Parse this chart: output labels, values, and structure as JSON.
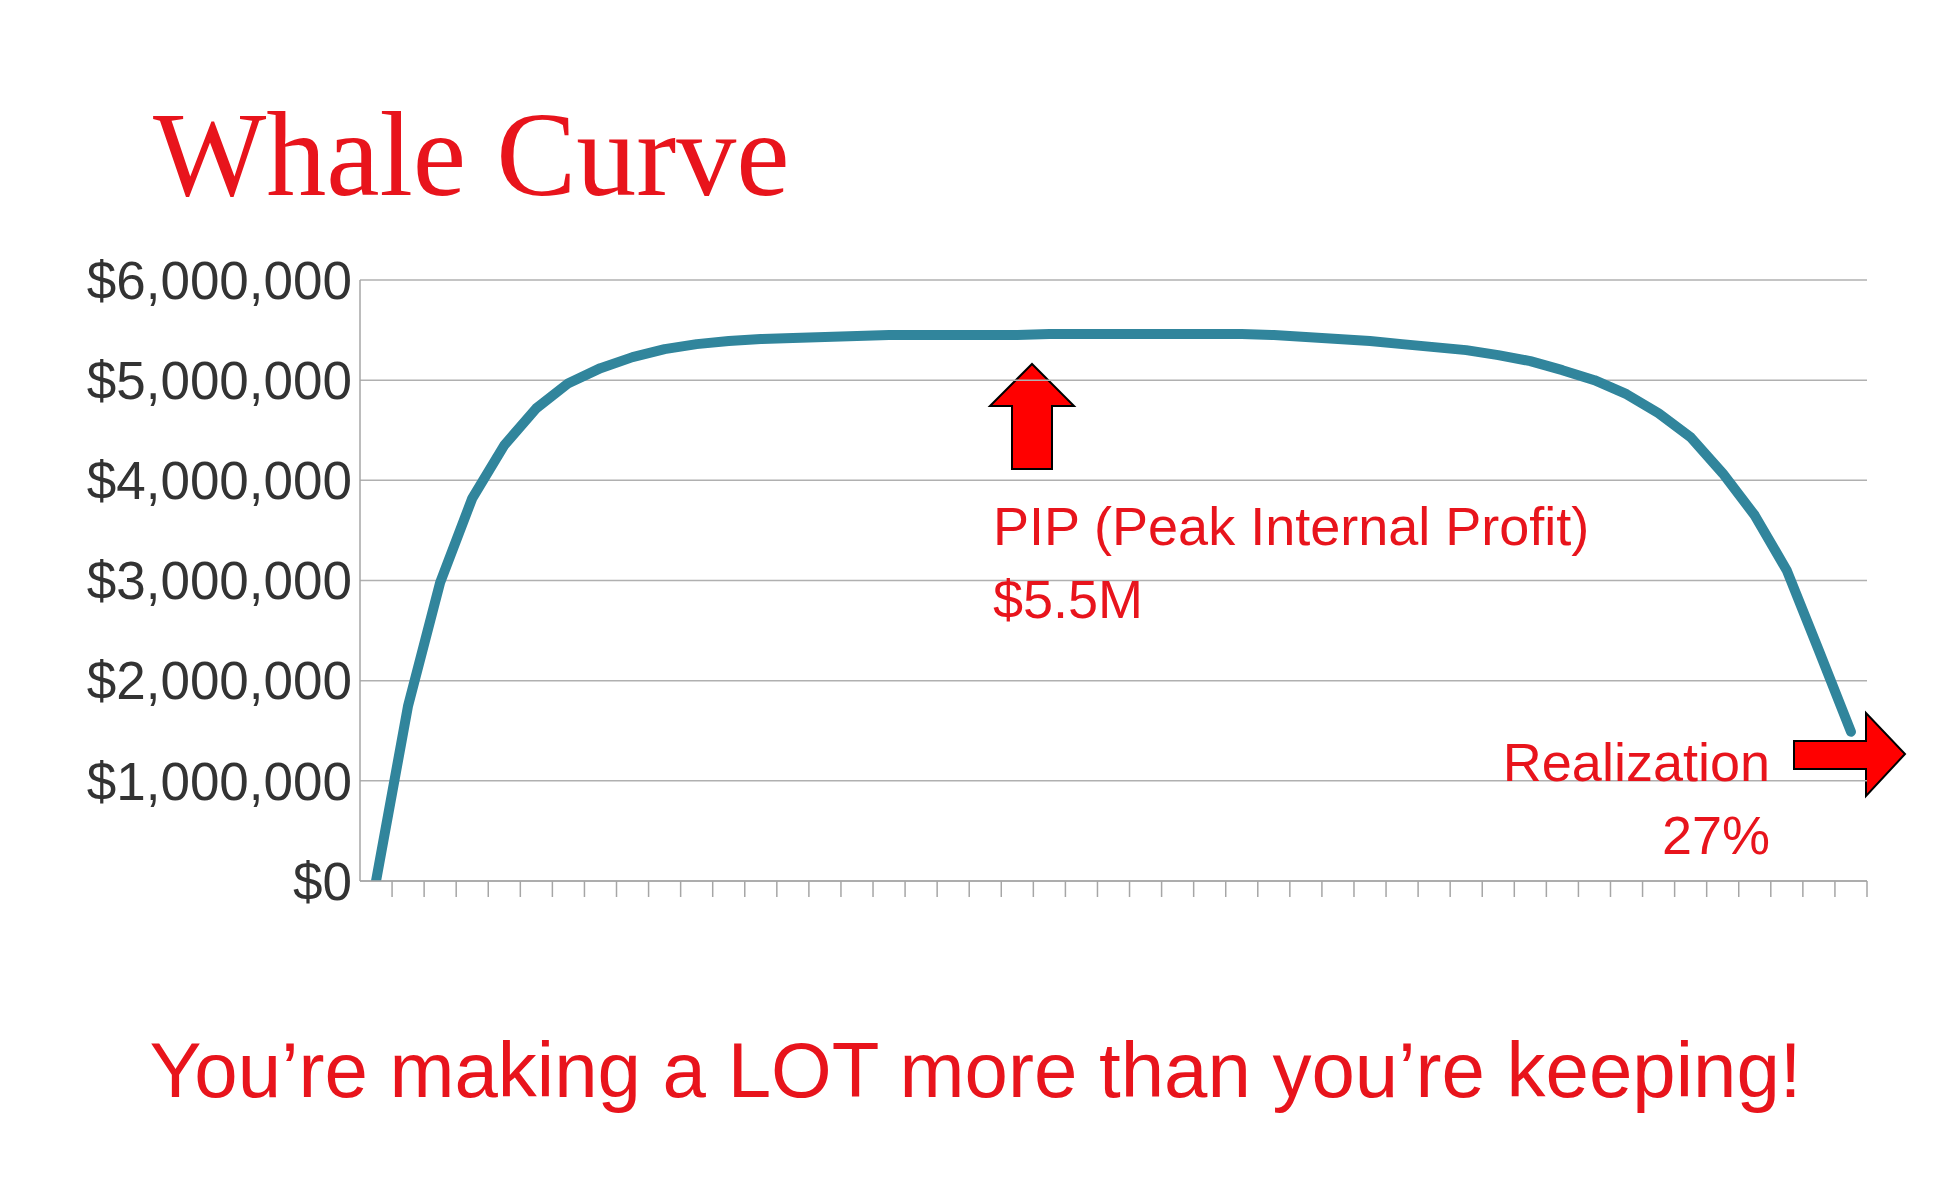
{
  "chart_data": {
    "type": "line",
    "title": "Whale Curve",
    "categories": [
      null,
      null,
      null,
      null,
      null,
      null,
      null,
      null,
      null,
      null,
      null,
      null,
      null,
      null,
      null,
      null,
      null,
      null,
      null,
      null,
      null,
      null,
      null,
      null,
      null,
      null,
      null,
      null,
      null,
      null,
      null,
      null,
      null,
      null,
      null,
      null,
      null,
      null,
      null,
      null,
      null,
      null,
      null,
      null,
      null,
      null,
      null
    ],
    "series": [
      {
        "color": "#31859c",
        "values": [
          0,
          1750000,
          2980000,
          3820000,
          4350000,
          4720000,
          4970000,
          5120000,
          5230000,
          5310000,
          5360000,
          5390000,
          5410000,
          5420000,
          5430000,
          5440000,
          5450000,
          5450000,
          5450000,
          5450000,
          5450000,
          5460000,
          5460000,
          5460000,
          5460000,
          5460000,
          5460000,
          5460000,
          5450000,
          5430000,
          5410000,
          5390000,
          5360000,
          5330000,
          5300000,
          5250000,
          5190000,
          5100000,
          5000000,
          4860000,
          4670000,
          4430000,
          4070000,
          3650000,
          3100000,
          2300000,
          1490000
        ]
      }
    ],
    "ylim": [
      0,
      6000000
    ],
    "yticks": [
      {
        "value": 0,
        "label": "$0"
      },
      {
        "value": 1000000,
        "label": "$1,000,000"
      },
      {
        "value": 2000000,
        "label": "$2,000,000"
      },
      {
        "value": 3000000,
        "label": "$3,000,000"
      },
      {
        "value": 4000000,
        "label": "$4,000,000"
      },
      {
        "value": 5000000,
        "label": "$5,000,000"
      },
      {
        "value": 6000000,
        "label": "$6,000,000"
      }
    ],
    "grid": "y",
    "tick_labels": "y",
    "marker": "none",
    "annotations": [
      "PIP (Peak Internal Profit)\n$5.5M",
      "Realization\n27%",
      "You’re making a LOT more than you’re keeping!"
    ]
  }
}
